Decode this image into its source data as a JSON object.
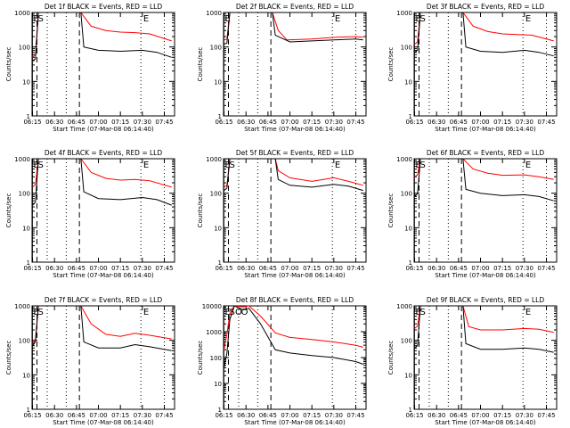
{
  "figure": {
    "xlabel": "Start Time (07-Mar-08 06:14:40)",
    "ylabel": "Counts/sec",
    "xticks": [
      "06:15",
      "06:30",
      "06:45",
      "07:00",
      "07:15",
      "07:30",
      "07:45"
    ],
    "yticks": [
      "1",
      "10",
      "100",
      "1000"
    ],
    "yticks_big": [
      "1",
      "10",
      "100",
      "1000",
      "10000"
    ],
    "colors": {
      "events": "#000000",
      "lld": "#ff0000",
      "axes": "#000000"
    }
  },
  "chart_data": [
    {
      "type": "line",
      "title": "Det 1f BLACK = Events, RED = LLD",
      "yscale": "log",
      "ylim": [
        1,
        1000
      ],
      "xlim": [
        "06:14:40",
        "07:52:00"
      ],
      "markers": [
        {
          "label": "E",
          "x": "06:15"
        },
        {
          "label": "S",
          "x": "06:18"
        },
        {
          "label": "E",
          "x": "07:30"
        }
      ],
      "series": [
        {
          "x": [
            "06:15",
            "06:17",
            "06:19",
            "06:22",
            "06:48",
            "06:55",
            "07:05",
            "07:15",
            "07:25",
            "07:35",
            "07:50"
          ],
          "values": [
            50,
            60,
            1000,
            1000,
            1000,
            400,
            300,
            270,
            260,
            240,
            150
          ]
        },
        {
          "x": [
            "06:15",
            "06:17",
            "06:19",
            "06:48",
            "06:50",
            "07:00",
            "07:15",
            "07:30",
            "07:40",
            "07:50"
          ],
          "values": [
            40,
            45,
            1000,
            1000,
            100,
            80,
            75,
            80,
            70,
            50
          ]
        }
      ]
    },
    {
      "type": "line",
      "title": "Det 2f BLACK = Events, RED = LLD",
      "yscale": "log",
      "ylim": [
        1,
        1000
      ],
      "xlim": [
        "06:14:40",
        "07:52:00"
      ],
      "markers": [
        {
          "label": "E",
          "x": "06:15"
        },
        {
          "label": "E",
          "x": "07:30"
        }
      ],
      "series": [
        {
          "x": [
            "06:15",
            "06:17",
            "06:19",
            "06:48",
            "06:52",
            "06:58",
            "07:15",
            "07:30",
            "07:45",
            "07:50"
          ],
          "values": [
            160,
            170,
            1000,
            1000,
            300,
            160,
            170,
            190,
            200,
            190
          ]
        },
        {
          "x": [
            "06:15",
            "06:17",
            "06:19",
            "06:48",
            "06:50",
            "07:00",
            "07:15",
            "07:30",
            "07:45",
            "07:50"
          ],
          "values": [
            120,
            130,
            1000,
            1000,
            220,
            140,
            150,
            160,
            170,
            160
          ]
        }
      ]
    },
    {
      "type": "line",
      "title": "Det 3f BLACK = Events, RED = LLD",
      "yscale": "log",
      "ylim": [
        1,
        1000
      ],
      "xlim": [
        "06:14:40",
        "07:52:00"
      ],
      "markers": [
        {
          "label": "E",
          "x": "06:15"
        },
        {
          "label": "S",
          "x": "06:18"
        },
        {
          "label": "E",
          "x": "07:30"
        }
      ],
      "series": [
        {
          "x": [
            "06:15",
            "06:17",
            "06:19",
            "06:48",
            "06:55",
            "07:05",
            "07:15",
            "07:25",
            "07:35",
            "07:50"
          ],
          "values": [
            120,
            140,
            1000,
            1000,
            400,
            280,
            240,
            230,
            220,
            150
          ]
        },
        {
          "x": [
            "06:15",
            "06:17",
            "06:19",
            "06:48",
            "06:50",
            "07:00",
            "07:15",
            "07:30",
            "07:40",
            "07:50"
          ],
          "values": [
            70,
            80,
            1000,
            1000,
            100,
            75,
            70,
            80,
            70,
            55
          ]
        }
      ]
    },
    {
      "type": "line",
      "title": "Det 4f BLACK = Events, RED = LLD",
      "yscale": "log",
      "ylim": [
        1,
        1000
      ],
      "xlim": [
        "06:14:40",
        "07:52:00"
      ],
      "markers": [
        {
          "label": "E",
          "x": "06:15"
        },
        {
          "label": "S",
          "x": "06:18"
        },
        {
          "label": "E",
          "x": "07:30"
        }
      ],
      "series": [
        {
          "x": [
            "06:15",
            "06:17",
            "06:19",
            "06:48",
            "06:55",
            "07:05",
            "07:15",
            "07:25",
            "07:35",
            "07:50"
          ],
          "values": [
            150,
            180,
            1000,
            1000,
            400,
            270,
            240,
            250,
            230,
            150
          ]
        },
        {
          "x": [
            "06:15",
            "06:17",
            "06:19",
            "06:48",
            "06:50",
            "07:00",
            "07:15",
            "07:30",
            "07:40",
            "07:50"
          ],
          "values": [
            45,
            55,
            1000,
            1000,
            110,
            70,
            65,
            75,
            65,
            45
          ]
        }
      ]
    },
    {
      "type": "line",
      "title": "Det 5f BLACK = Events, RED = LLD",
      "yscale": "log",
      "ylim": [
        1,
        1000
      ],
      "xlim": [
        "06:14:40",
        "07:52:00"
      ],
      "markers": [
        {
          "label": "E",
          "x": "06:15"
        },
        {
          "label": "S",
          "x": "06:18"
        },
        {
          "label": "E",
          "x": "07:30"
        }
      ],
      "series": [
        {
          "x": [
            "06:15",
            "06:17",
            "06:19",
            "06:50",
            "06:52",
            "07:00",
            "07:15",
            "07:30",
            "07:40",
            "07:50"
          ],
          "values": [
            150,
            170,
            1000,
            1000,
            450,
            280,
            220,
            280,
            220,
            170
          ]
        },
        {
          "x": [
            "06:15",
            "06:17",
            "06:19",
            "06:50",
            "06:52",
            "07:00",
            "07:15",
            "07:30",
            "07:40",
            "07:50"
          ],
          "values": [
            120,
            140,
            1000,
            1000,
            250,
            170,
            150,
            180,
            160,
            120
          ]
        }
      ]
    },
    {
      "type": "line",
      "title": "Det 6f BLACK = Events, RED = LLD",
      "yscale": "log",
      "ylim": [
        1,
        1000
      ],
      "xlim": [
        "06:14:40",
        "07:52:00"
      ],
      "markers": [
        {
          "label": "E",
          "x": "06:15"
        },
        {
          "label": "S",
          "x": "06:18"
        },
        {
          "label": "E",
          "x": "07:30"
        }
      ],
      "series": [
        {
          "x": [
            "06:15",
            "06:17",
            "06:19",
            "06:48",
            "06:55",
            "07:05",
            "07:15",
            "07:30",
            "07:40",
            "07:50"
          ],
          "values": [
            300,
            340,
            1000,
            1000,
            500,
            380,
            330,
            340,
            300,
            250
          ]
        },
        {
          "x": [
            "06:15",
            "06:17",
            "06:19",
            "06:48",
            "06:50",
            "07:00",
            "07:15",
            "07:30",
            "07:40",
            "07:50"
          ],
          "values": [
            80,
            95,
            1000,
            1000,
            130,
            100,
            85,
            90,
            80,
            60
          ]
        }
      ]
    },
    {
      "type": "line",
      "title": "Det 7f BLACK = Events, RED = LLD",
      "yscale": "log",
      "ylim": [
        1,
        1000
      ],
      "xlim": [
        "06:14:40",
        "07:52:00"
      ],
      "markers": [
        {
          "label": "E",
          "x": "06:15"
        },
        {
          "label": "S",
          "x": "06:18"
        },
        {
          "label": "E",
          "x": "07:30"
        }
      ],
      "series": [
        {
          "x": [
            "06:15",
            "06:17",
            "06:19",
            "06:48",
            "06:55",
            "07:05",
            "07:15",
            "07:25",
            "07:35",
            "07:50"
          ],
          "values": [
            80,
            110,
            1000,
            1000,
            300,
            150,
            130,
            160,
            140,
            110
          ]
        },
        {
          "x": [
            "06:15",
            "06:17",
            "06:19",
            "06:48",
            "06:50",
            "07:00",
            "07:15",
            "07:25",
            "07:35",
            "07:50"
          ],
          "values": [
            70,
            90,
            1000,
            1000,
            90,
            60,
            60,
            75,
            65,
            50
          ]
        }
      ]
    },
    {
      "type": "line",
      "title": "Det 8f BLACK = Events, RED = LLD",
      "yscale": "log",
      "ylim": [
        1,
        10000
      ],
      "xlim": [
        "06:14:40",
        "07:52:00"
      ],
      "markers": [
        {
          "label": "E",
          "x": "06:15"
        },
        {
          "label": "S",
          "x": "06:18"
        },
        {
          "label": "O",
          "x": "06:22"
        },
        {
          "label": "O",
          "x": "06:26"
        }
      ],
      "series": [
        {
          "x": [
            "06:15",
            "06:17",
            "06:19",
            "06:22",
            "06:28",
            "06:32",
            "06:40",
            "06:50",
            "07:00",
            "07:15",
            "07:30",
            "07:45",
            "07:50"
          ],
          "values": [
            200,
            800,
            5000,
            10000,
            9000,
            10000,
            4000,
            900,
            600,
            500,
            400,
            300,
            250
          ]
        },
        {
          "x": [
            "06:15",
            "06:17",
            "06:19",
            "06:22",
            "06:28",
            "06:32",
            "06:40",
            "06:50",
            "07:00",
            "07:15",
            "07:30",
            "07:45",
            "07:50"
          ],
          "values": [
            40,
            150,
            3000,
            10000,
            7000,
            8000,
            2000,
            200,
            150,
            120,
            100,
            70,
            55
          ]
        }
      ]
    },
    {
      "type": "line",
      "title": "Det 9f BLACK = Events, RED = LLD",
      "yscale": "log",
      "ylim": [
        1,
        1000
      ],
      "xlim": [
        "06:14:40",
        "07:52:00"
      ],
      "markers": [
        {
          "label": "E",
          "x": "06:15"
        },
        {
          "label": "S",
          "x": "06:18"
        },
        {
          "label": "E",
          "x": "07:30"
        }
      ],
      "series": [
        {
          "x": [
            "06:15",
            "06:17",
            "06:19",
            "06:48",
            "06:52",
            "07:00",
            "07:15",
            "07:30",
            "07:40",
            "07:50"
          ],
          "values": [
            220,
            260,
            1000,
            1000,
            250,
            200,
            200,
            220,
            210,
            170
          ]
        },
        {
          "x": [
            "06:15",
            "06:17",
            "06:19",
            "06:48",
            "06:50",
            "07:00",
            "07:15",
            "07:30",
            "07:40",
            "07:50"
          ],
          "values": [
            60,
            70,
            1000,
            1000,
            80,
            55,
            55,
            60,
            55,
            45
          ]
        }
      ]
    }
  ]
}
